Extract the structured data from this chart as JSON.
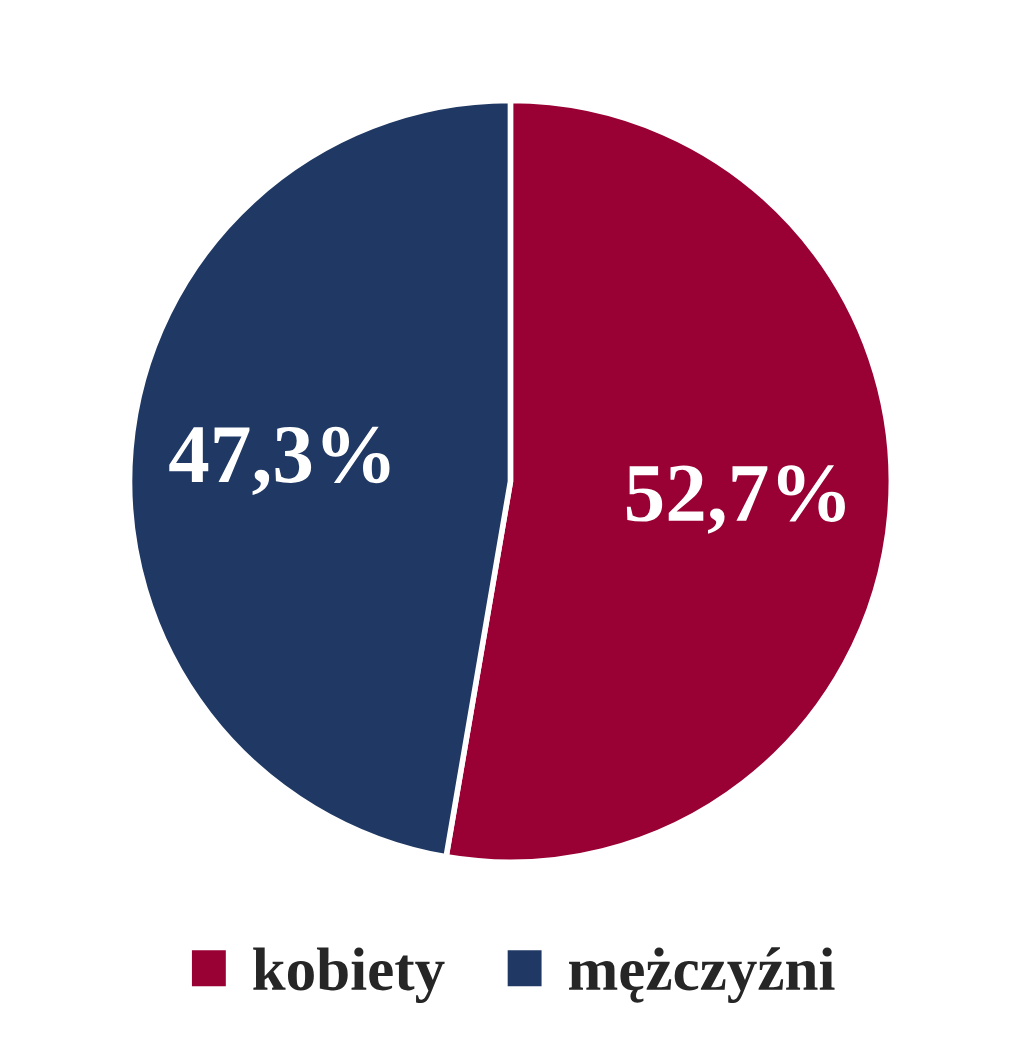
{
  "chart_data": {
    "type": "pie",
    "categories": [
      "kobiety",
      "mężczyźni"
    ],
    "values": [
      52.7,
      47.3
    ],
    "colors": [
      "#990033",
      "#1f3864"
    ],
    "value_labels": [
      "52,7%",
      "47,3%"
    ],
    "legend": "bottom"
  }
}
